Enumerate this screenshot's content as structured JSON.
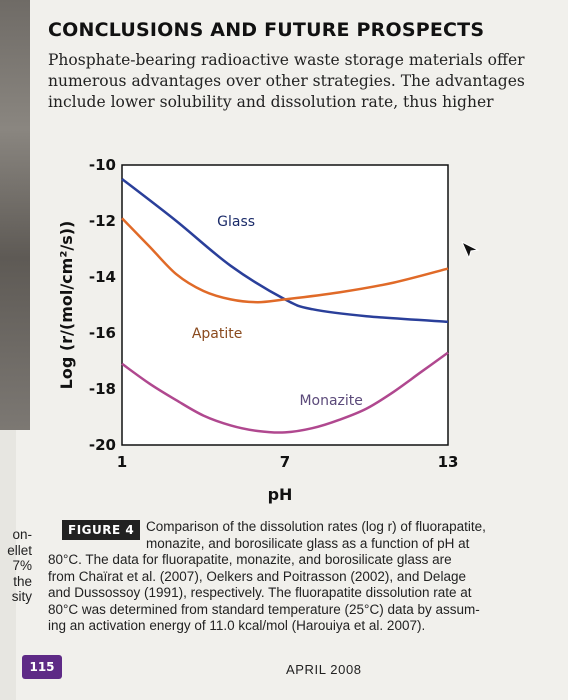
{
  "heading": "CONCLUSIONS AND FUTURE PROSPECTS",
  "intro_lines": [
    "Phosphate-bearing radioactive waste storage materials offer",
    "numerous advantages over other strategies. The advantages",
    "include lower solubility and dissolution rate, thus higher"
  ],
  "chart_data": {
    "type": "line",
    "xlabel": "pH",
    "ylabel": "Log (r/(mol/cm²/s))",
    "x_ticks": [
      "1",
      "7",
      "13"
    ],
    "y_ticks": [
      "-10",
      "-12",
      "-14",
      "-16",
      "-18",
      "-20"
    ],
    "xlim": [
      1,
      13
    ],
    "ylim": [
      -20,
      -10
    ],
    "series": [
      {
        "name": "Glass",
        "color": "#2a3f9a",
        "points": [
          [
            1,
            -10.5
          ],
          [
            3,
            -12.0
          ],
          [
            5,
            -13.6
          ],
          [
            7,
            -14.8
          ],
          [
            8,
            -15.15
          ],
          [
            10,
            -15.4
          ],
          [
            13,
            -15.6
          ]
        ]
      },
      {
        "name": "Apatite",
        "color": "#e06a28",
        "points": [
          [
            1,
            -11.9
          ],
          [
            2,
            -12.9
          ],
          [
            3,
            -13.9
          ],
          [
            4,
            -14.5
          ],
          [
            5,
            -14.8
          ],
          [
            6,
            -14.9
          ],
          [
            7,
            -14.8
          ],
          [
            9,
            -14.55
          ],
          [
            11,
            -14.2
          ],
          [
            13,
            -13.7
          ]
        ]
      },
      {
        "name": "Monazite",
        "color": "#b0488f",
        "points": [
          [
            1,
            -17.1
          ],
          [
            2,
            -17.8
          ],
          [
            3,
            -18.4
          ],
          [
            4,
            -18.95
          ],
          [
            5,
            -19.3
          ],
          [
            6,
            -19.5
          ],
          [
            7,
            -19.55
          ],
          [
            8,
            -19.4
          ],
          [
            9,
            -19.1
          ],
          [
            10,
            -18.7
          ],
          [
            11,
            -18.1
          ],
          [
            12,
            -17.4
          ],
          [
            13,
            -16.7
          ]
        ]
      }
    ]
  },
  "figure_label": "FIGURE 4",
  "caption_lines": [
    "Comparison of the dissolution rates (log r) of fluorapatite,",
    "monazite, and borosilicate glass as a function of pH at",
    "80°C. The data for fluorapatite, monazite, and borosilicate glass are",
    "from Chaïrat et al. (2007), Oelkers and Poitrasson (2002), and Delage",
    "and Dussossoy (1991), respectively. The fluorapatite dissolution rate at",
    "80°C was determined from standard temperature (25°C) data by assum-",
    "ing an activation energy of 11.0 kcal/mol (Harouiya et al. 2007)."
  ],
  "margin_fragments": [
    "on-",
    "ellet",
    "7%",
    "the",
    "sity"
  ],
  "page_number": "115",
  "footer_date": "APRIL 2008"
}
